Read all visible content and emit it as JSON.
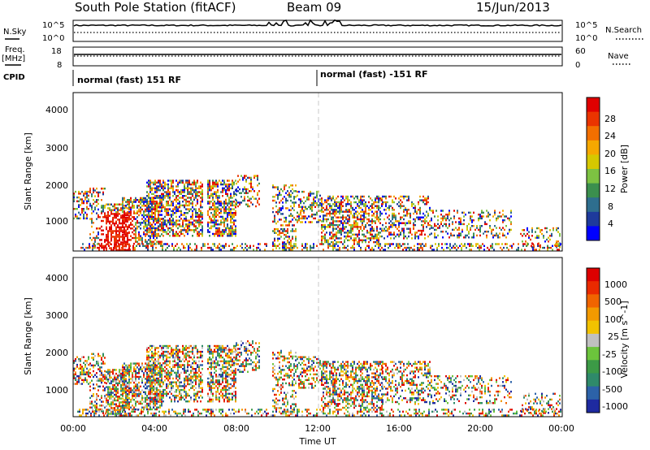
{
  "header": {
    "station": "South Pole Station (fitACF)",
    "beam": "Beam 09",
    "date": "15/Jun/2013"
  },
  "nsky_panel": {
    "label": "N.Sky",
    "right_label": "N.Search",
    "y_ticks_left": [
      "10^5",
      "10^0"
    ],
    "y_ticks_right": [
      "10^5",
      "10^0"
    ]
  },
  "freq_panel": {
    "label_line1": "Freq.",
    "label_line2": "[MHz]",
    "right_label": "Nave",
    "y_ticks_left": [
      "18",
      "8"
    ],
    "y_ticks_right": [
      "60",
      "0"
    ]
  },
  "cpid_panel": {
    "label": "CPID",
    "segments": [
      "normal (fast) 151 RF",
      "normal (fast) -151 RF"
    ]
  },
  "chart_data": [
    {
      "type": "heatmap",
      "name": "power",
      "ylabel": "Slant Range [km]",
      "xlabel": "",
      "y_ticks": [
        "4000",
        "3000",
        "2000",
        "1000"
      ],
      "ylim": [
        180,
        4500
      ],
      "colorbar": {
        "label": "Power [dB]",
        "ticks": [
          "28",
          "24",
          "20",
          "16",
          "12",
          "8",
          "4"
        ],
        "colors": [
          "#0000ff",
          "#1e3a9c",
          "#2e6e8e",
          "#3b8f4e",
          "#7dc242",
          "#d6c800",
          "#f6a800",
          "#f36f00",
          "#ea3400",
          "#e00000"
        ]
      }
    },
    {
      "type": "heatmap",
      "name": "velocity",
      "ylabel": "Slant Range [km]",
      "xlabel": "Time UT",
      "y_ticks": [
        "4000",
        "3000",
        "2000",
        "1000"
      ],
      "ylim": [
        180,
        4500
      ],
      "x_ticks": [
        "00:00",
        "04:00",
        "08:00",
        "12:00",
        "16:00",
        "20:00",
        "00:00"
      ],
      "colorbar": {
        "label": "Velocity [m s^-1]",
        "ticks": [
          "1000",
          "500",
          "100",
          "25",
          "-25",
          "-100",
          "-500",
          "-1000"
        ],
        "colors": [
          "#1e2aa0",
          "#2c62a8",
          "#2f8a6a",
          "#3c9a46",
          "#6cc43c",
          "#c0c0c0",
          "#f2c200",
          "#f39a00",
          "#f06400",
          "#ea2a00",
          "#dd0000"
        ]
      }
    }
  ]
}
